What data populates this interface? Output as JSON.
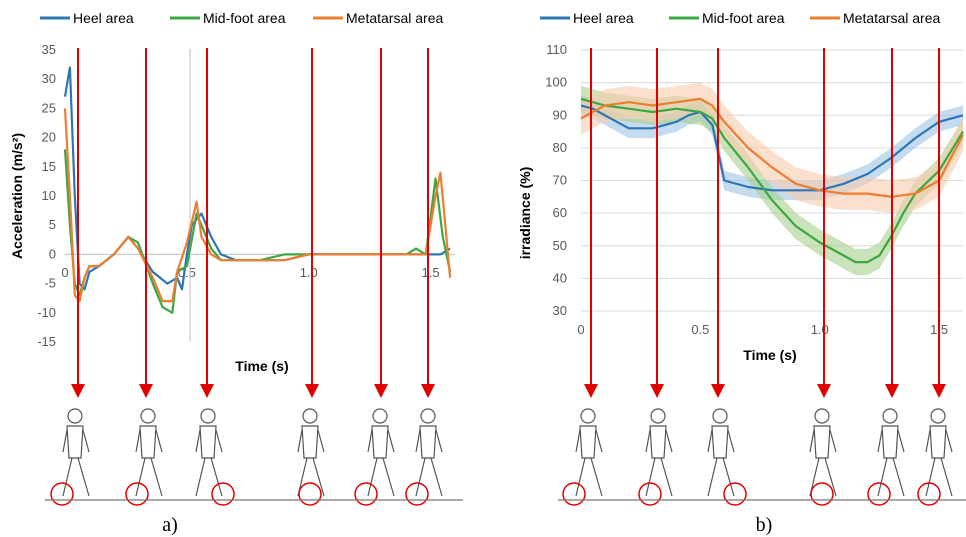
{
  "colors": {
    "heel": "#2E75B6",
    "midfoot": "#3DA745",
    "metatarsal": "#ED7D31",
    "arrow": "#E00000",
    "heel_band": "#9DC3E6",
    "midfoot_band": "#A9D18E",
    "metatarsal_band": "#F8CBAD",
    "grid": "#D9D9D9"
  },
  "chart_data": [
    {
      "type": "line",
      "panel_label": "a)",
      "xlabel": "Time (s)",
      "ylabel": "Acceleration (m/s²)",
      "xlim": [
        0,
        1.6
      ],
      "ylim": [
        -15,
        35
      ],
      "x_ticks": [
        "0",
        "0.5",
        "1.0",
        "1.5"
      ],
      "y_ticks": [
        "35",
        "30",
        "25",
        "20",
        "15",
        "10",
        "5",
        "0",
        "-5",
        "-10",
        "-15"
      ],
      "legend": [
        "Heel area",
        "Mid-foot area",
        "Metatarsal area"
      ],
      "series": [
        {
          "name": "Heel area",
          "x": [
            0,
            0.02,
            0.04,
            0.06,
            0.08,
            0.1,
            0.14,
            0.2,
            0.26,
            0.3,
            0.36,
            0.42,
            0.46,
            0.48,
            0.5,
            0.52,
            0.56,
            0.6,
            0.64,
            0.7,
            0.8,
            0.9,
            1.0,
            1.1,
            1.2,
            1.3,
            1.4,
            1.46,
            1.5,
            1.54,
            1.58
          ],
          "values": [
            27,
            32,
            10,
            -5,
            -6,
            -3,
            -2,
            0,
            3,
            1,
            -3,
            -5,
            -4,
            -6,
            0,
            5,
            7,
            3,
            0,
            -1,
            -1,
            -1,
            0,
            0,
            0,
            0,
            0,
            0,
            0,
            0,
            1
          ]
        },
        {
          "name": "Mid-foot area",
          "x": [
            0,
            0.02,
            0.04,
            0.06,
            0.08,
            0.1,
            0.14,
            0.2,
            0.26,
            0.3,
            0.36,
            0.4,
            0.44,
            0.46,
            0.5,
            0.54,
            0.56,
            0.6,
            0.64,
            0.7,
            0.8,
            0.9,
            1.0,
            1.1,
            1.2,
            1.3,
            1.4,
            1.44,
            1.48,
            1.52,
            1.55,
            1.58
          ],
          "values": [
            18,
            5,
            -5,
            -7,
            -4,
            -2,
            -2,
            0,
            3,
            2,
            -5,
            -9,
            -10,
            -3,
            -2,
            7,
            5,
            1,
            -1,
            -1,
            -1,
            0,
            0,
            0,
            0,
            0,
            0,
            1,
            0,
            13,
            3,
            -3
          ]
        },
        {
          "name": "Metatarsal area",
          "x": [
            0,
            0.02,
            0.04,
            0.06,
            0.08,
            0.1,
            0.14,
            0.2,
            0.26,
            0.3,
            0.36,
            0.4,
            0.44,
            0.46,
            0.5,
            0.54,
            0.56,
            0.6,
            0.64,
            0.7,
            0.8,
            0.9,
            1.0,
            1.1,
            1.2,
            1.3,
            1.4,
            1.44,
            1.48,
            1.52,
            1.54,
            1.56,
            1.58
          ],
          "values": [
            25,
            10,
            -7,
            -8,
            -4,
            -2,
            -2,
            0,
            3,
            1,
            -4,
            -8,
            -8,
            -3,
            2,
            9,
            3,
            0,
            -1,
            -1,
            -1,
            -1,
            0,
            0,
            0,
            0,
            0,
            0,
            0,
            10,
            14,
            5,
            -4
          ]
        }
      ]
    },
    {
      "type": "line",
      "panel_label": "b)",
      "xlabel": "Time (s)",
      "ylabel": "irradiance (%)",
      "xlim": [
        0,
        1.6
      ],
      "ylim": [
        30,
        110
      ],
      "x_ticks": [
        "0",
        "0.5",
        "1.0",
        "1.5"
      ],
      "y_ticks": [
        "110",
        "100",
        "90",
        "80",
        "70",
        "60",
        "50",
        "40",
        "30"
      ],
      "legend": [
        "Heel area",
        "Mid-foot area",
        "Metatarsal area"
      ],
      "series": [
        {
          "name": "Heel area",
          "x": [
            0,
            0.05,
            0.1,
            0.15,
            0.2,
            0.3,
            0.4,
            0.45,
            0.5,
            0.55,
            0.6,
            0.7,
            0.8,
            0.9,
            1.0,
            1.1,
            1.2,
            1.3,
            1.4,
            1.5,
            1.6
          ],
          "values": [
            93,
            92,
            90,
            88,
            86,
            86,
            88,
            90,
            91,
            87,
            70,
            68,
            67,
            67,
            67,
            69,
            72,
            77,
            83,
            88,
            90
          ],
          "band": 3
        },
        {
          "name": "Mid-foot area",
          "x": [
            0,
            0.05,
            0.1,
            0.2,
            0.3,
            0.4,
            0.5,
            0.55,
            0.6,
            0.7,
            0.8,
            0.9,
            1.0,
            1.1,
            1.15,
            1.2,
            1.25,
            1.3,
            1.35,
            1.4,
            1.5,
            1.6
          ],
          "values": [
            95,
            94,
            93,
            92,
            91,
            92,
            91,
            89,
            83,
            74,
            64,
            56,
            51,
            47,
            45,
            45,
            47,
            53,
            60,
            66,
            73,
            85
          ],
          "band": 4
        },
        {
          "name": "Metatarsal area",
          "x": [
            0,
            0.05,
            0.1,
            0.2,
            0.3,
            0.4,
            0.5,
            0.55,
            0.6,
            0.7,
            0.8,
            0.9,
            1.0,
            1.1,
            1.2,
            1.3,
            1.4,
            1.5,
            1.6
          ],
          "values": [
            89,
            91,
            93,
            94,
            93,
            94,
            95,
            93,
            88,
            80,
            74,
            69,
            67,
            66,
            66,
            65,
            66,
            70,
            84
          ],
          "band": 5
        }
      ]
    }
  ]
}
